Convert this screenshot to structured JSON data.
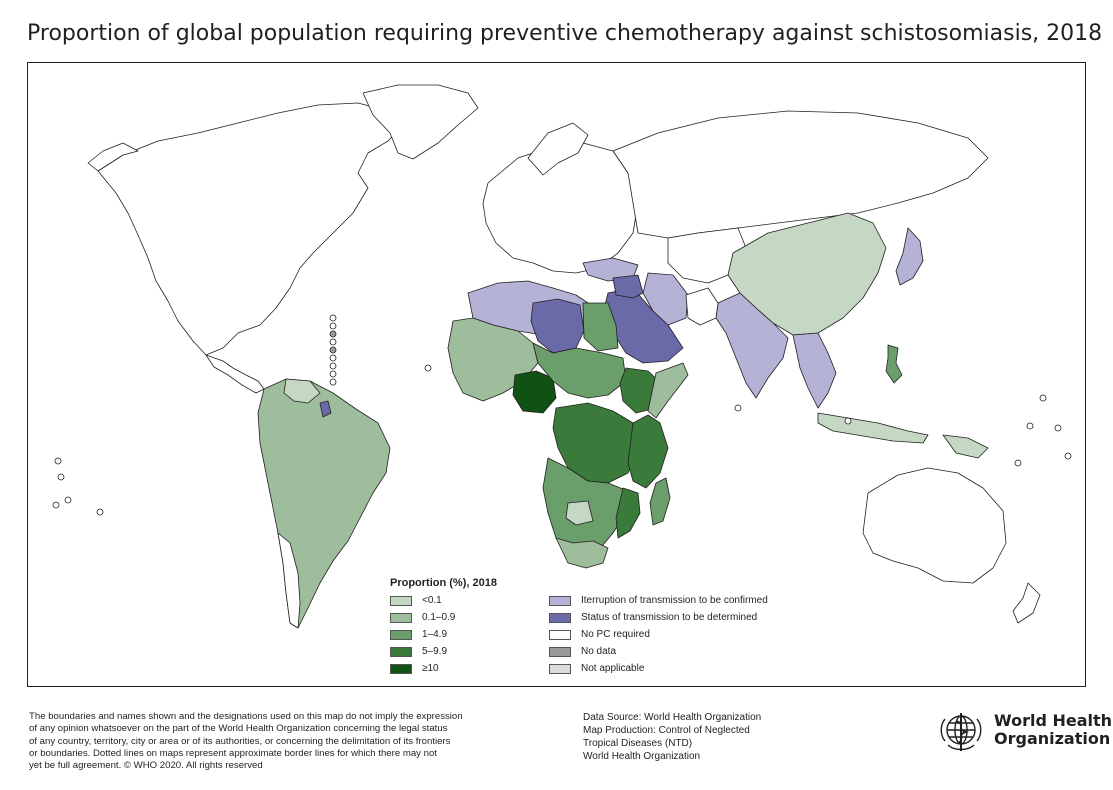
{
  "title": "Proportion of global population requiring preventive chemotherapy against schistosomiasis, 2018",
  "legend": {
    "title": "Proportion (%), 2018",
    "proportion_classes": [
      {
        "label": "<0.1",
        "color": "#c4d8c4"
      },
      {
        "label": "0.1–0.9",
        "color": "#9dbd9d"
      },
      {
        "label": "1–4.9",
        "color": "#6a9e6a"
      },
      {
        "label": "5–9.9",
        "color": "#3a7a3a"
      },
      {
        "label": "≥10",
        "color": "#0f5214"
      }
    ],
    "status_classes": [
      {
        "label": "Iterruption of transmission to be confirmed",
        "color": "#b4b3d6"
      },
      {
        "label": "Status of transmission to be determined",
        "color": "#6b6aa8"
      },
      {
        "label": "No PC required",
        "color": "#ffffff"
      },
      {
        "label": "No data",
        "color": "#9a9a9a"
      },
      {
        "label": "Not applicable",
        "color": "#dcdcdc"
      }
    ]
  },
  "footer": {
    "disclaimer": [
      "The boundaries and names shown and the designations used on this map do not imply the expression",
      "of any opinion whatsoever on the part of the World Health Organization concerning the legal status",
      "of any country, territory, city or area or of its authorities, or concerning the delimitation of its frontiers",
      "or boundaries. Dotted lines on maps represent approximate border lines for which there may not",
      "yet be full agreement. © WHO 2020. All rights reserved"
    ],
    "credits": [
      "Data Source: World Health Organization",
      "Map Production: Control of Neglected",
      "Tropical Diseases (NTD)",
      "World Health Organization"
    ]
  },
  "organization": {
    "name_line1": "World Health",
    "name_line2": "Organization"
  },
  "colors": {
    "border": "#231f20",
    "land_default": "#ffffff"
  }
}
